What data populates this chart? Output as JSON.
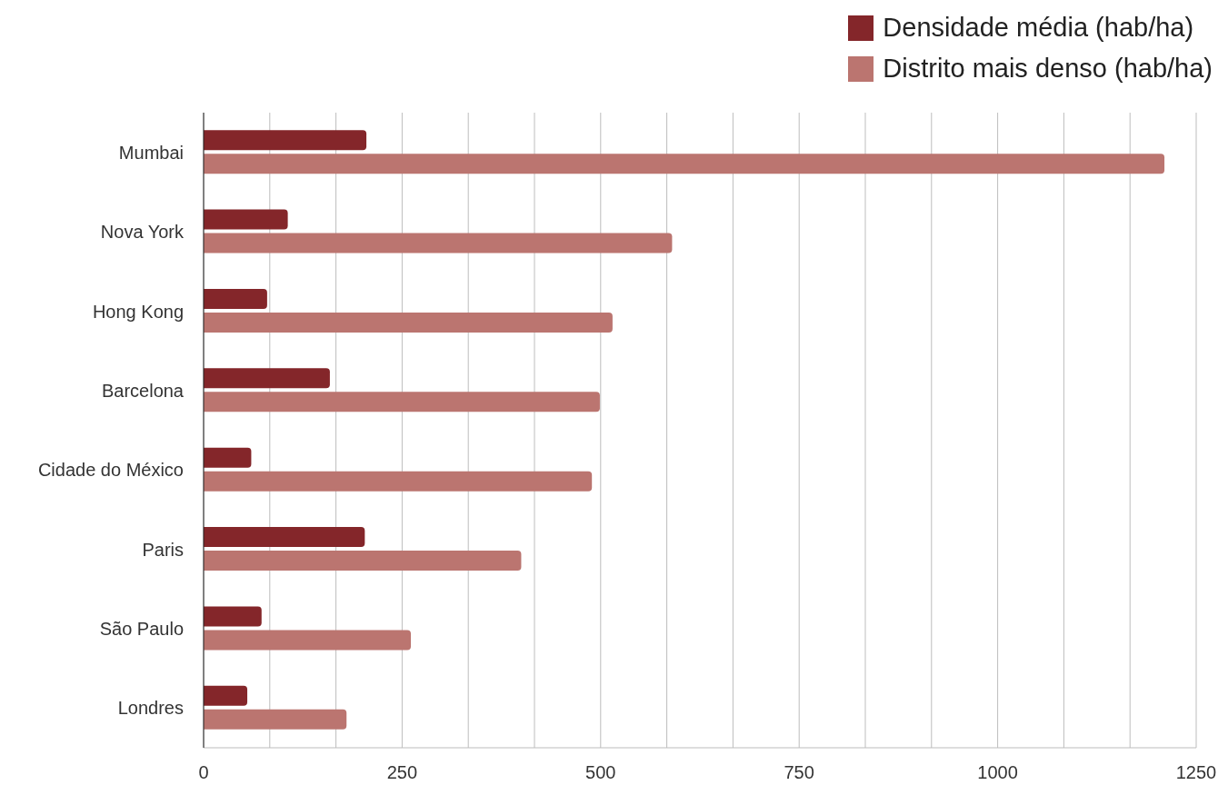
{
  "chart_data": {
    "type": "bar",
    "orientation": "horizontal",
    "categories": [
      "Mumbai",
      "Nova York",
      "Hong Kong",
      "Barcelona",
      "Cidade do México",
      "Paris",
      "São Paulo",
      "Londres"
    ],
    "series": [
      {
        "name": "Densidade média (hab/ha)",
        "color": "#84262a",
        "values": [
          205,
          106,
          80,
          159,
          60,
          203,
          73,
          55
        ]
      },
      {
        "name": "Distrito mais denso (hab/ha)",
        "color": "#bb7570",
        "values": [
          1210,
          590,
          515,
          499,
          489,
          400,
          261,
          180
        ]
      }
    ],
    "xlim": [
      0,
      1250
    ],
    "xticks": [
      0,
      {
        "value": 83.33,
        "label": null
      },
      {
        "value": 166.67,
        "label": null
      },
      250,
      {
        "value": 333.33,
        "label": null
      },
      {
        "value": 416.67,
        "label": null
      },
      500,
      {
        "value": 583.33,
        "label": null
      },
      {
        "value": 666.67,
        "label": null
      },
      750,
      {
        "value": 833.33,
        "label": null
      },
      {
        "value": 916.67,
        "label": null
      },
      1000,
      {
        "value": 1083.33,
        "label": null
      },
      {
        "value": 1166.67,
        "label": null
      },
      1250
    ],
    "grid": "x",
    "legend": "top right"
  }
}
